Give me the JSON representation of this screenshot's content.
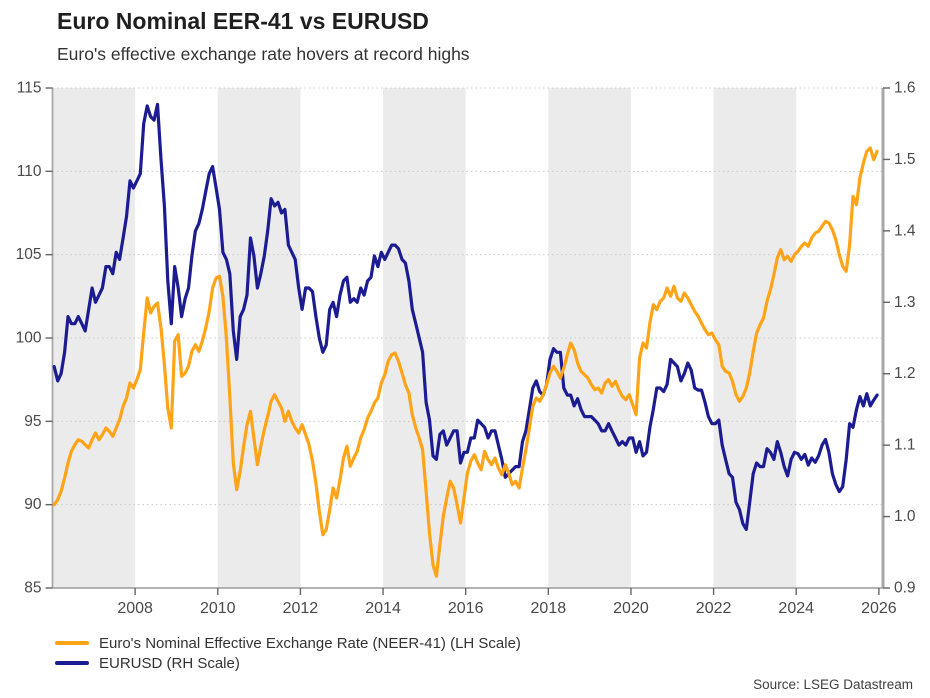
{
  "header": {
    "title": "Euro Nominal EER-41 vs EURUSD",
    "subtitle": "Euro's effective exchange rate hovers at record highs"
  },
  "source": "Source: LSEG Datastream",
  "legend": [
    {
      "label": "Euro's Nominal Effective Exchange Rate (NEER-41) (LH Scale)",
      "color": "#FFA317"
    },
    {
      "label": "EURUSD (RH Scale)",
      "color": "#1C1C92"
    }
  ],
  "colors": {
    "neer_orange": "#FFA317",
    "eurusd_navy": "#1C1C92",
    "band_gray": "#EBEBEB",
    "gridline": "#C9C9C9",
    "axis_line": "#A8A8A8",
    "tick_text": "#4A4A4A"
  },
  "chart_data": {
    "type": "line",
    "title": "Euro Nominal EER-41 vs EURUSD",
    "subtitle": "Euro's effective exchange rate hovers at record highs",
    "frequency": "monthly",
    "x_start_year": 2006,
    "x_range": [
      2006,
      2026.1
    ],
    "x_tick_values": [
      2008,
      2010,
      2012,
      2014,
      2016,
      2018,
      2020,
      2022,
      2024,
      2026
    ],
    "x_tick_labels": [
      "2008",
      "2010",
      "2012",
      "2014",
      "2016",
      "2018",
      "2020",
      "2022",
      "2024",
      "2026"
    ],
    "left_axis": {
      "range": [
        85,
        115
      ],
      "tick_values": [
        85,
        90,
        95,
        100,
        105,
        110,
        115
      ],
      "tick_labels": [
        "85",
        "90",
        "95",
        "100",
        "105",
        "110",
        "115"
      ]
    },
    "right_axis": {
      "range": [
        0.9,
        1.6
      ],
      "tick_values": [
        0.9,
        1.0,
        1.1,
        1.2,
        1.3,
        1.4,
        1.5,
        1.6
      ],
      "tick_labels": [
        "0.9",
        "1.0",
        "1.1",
        "1.2",
        "1.3",
        "1.4",
        "1.5",
        "1.6"
      ]
    },
    "shaded_band_start_years": [
      2006,
      2010,
      2014,
      2018,
      2022
    ],
    "shaded_band_width_years": 2,
    "grid": "horizontal-dotted",
    "legend_position": "bottom-left",
    "series": [
      {
        "name": "Euro's Nominal Effective Exchange Rate (NEER-41) (LH Scale)",
        "axis": "left",
        "color": "#FFA317",
        "values": [
          90.0,
          90.3,
          90.8,
          91.6,
          92.5,
          93.2,
          93.6,
          93.9,
          93.8,
          93.6,
          93.4,
          93.9,
          94.3,
          93.9,
          94.2,
          94.6,
          94.4,
          94.1,
          94.6,
          95.1,
          95.9,
          96.4,
          97.3,
          97.0,
          97.5,
          98.1,
          100.3,
          102.4,
          101.5,
          101.9,
          102.1,
          100.6,
          98.4,
          95.8,
          94.6,
          99.8,
          100.2,
          97.7,
          97.9,
          98.3,
          99.2,
          99.6,
          99.2,
          99.8,
          100.6,
          101.6,
          103.0,
          103.6,
          103.7,
          102.5,
          100.0,
          96.5,
          92.5,
          90.9,
          92.0,
          93.5,
          94.8,
          95.6,
          94.0,
          92.4,
          93.5,
          94.5,
          95.3,
          96.2,
          96.6,
          96.2,
          95.8,
          95.0,
          95.6,
          95.0,
          94.6,
          94.3,
          94.8,
          94.2,
          93.6,
          92.6,
          91.3,
          89.6,
          88.2,
          88.5,
          89.7,
          91.0,
          90.4,
          91.5,
          92.8,
          93.5,
          92.3,
          92.8,
          93.2,
          94.0,
          94.5,
          95.2,
          95.6,
          96.1,
          96.4,
          97.3,
          97.8,
          98.6,
          99.0,
          99.1,
          98.6,
          97.9,
          97.2,
          96.7,
          95.4,
          94.6,
          94.0,
          93.3,
          90.8,
          88.3,
          86.4,
          85.7,
          87.6,
          89.3,
          90.4,
          91.4,
          91.0,
          90.0,
          88.9,
          90.4,
          91.9,
          92.6,
          93.0,
          92.5,
          92.1,
          93.2,
          92.7,
          92.4,
          92.8,
          92.2,
          91.8,
          92.4,
          91.9,
          91.2,
          91.4,
          91.0,
          92.2,
          93.3,
          94.6,
          95.9,
          96.4,
          96.2,
          96.6,
          97.2,
          97.9,
          98.3,
          98.0,
          97.6,
          98.2,
          99.0,
          99.7,
          99.3,
          98.5,
          98.0,
          97.8,
          97.6,
          97.2,
          96.9,
          97.0,
          96.7,
          97.3,
          97.5,
          97.1,
          97.4,
          96.9,
          96.5,
          96.3,
          96.6,
          96.0,
          95.4,
          98.8,
          99.7,
          99.4,
          100.9,
          102.0,
          101.7,
          102.2,
          102.4,
          103.0,
          102.5,
          103.1,
          102.4,
          102.2,
          102.7,
          102.4,
          102.0,
          101.6,
          101.3,
          100.9,
          100.5,
          100.2,
          100.3,
          99.9,
          99.6,
          98.3,
          98.0,
          97.9,
          97.4,
          96.6,
          96.2,
          96.5,
          97.0,
          97.9,
          99.2,
          100.3,
          100.8,
          101.2,
          102.2,
          102.9,
          103.8,
          104.8,
          105.3,
          104.7,
          104.9,
          104.6,
          105.0,
          105.2,
          105.5,
          105.7,
          105.5,
          106.0,
          106.3,
          106.4,
          106.7,
          107.0,
          106.9,
          106.5,
          105.9,
          105.0,
          104.3,
          104.0,
          105.6,
          108.5,
          108.0,
          109.6,
          110.5,
          111.2,
          111.4,
          110.7,
          111.2
        ]
      },
      {
        "name": "EURUSD (RH Scale)",
        "axis": "right",
        "color": "#1C1C92",
        "values": [
          1.21,
          1.19,
          1.2,
          1.23,
          1.28,
          1.27,
          1.27,
          1.28,
          1.27,
          1.26,
          1.29,
          1.32,
          1.3,
          1.31,
          1.32,
          1.35,
          1.35,
          1.34,
          1.37,
          1.36,
          1.39,
          1.42,
          1.47,
          1.46,
          1.47,
          1.48,
          1.55,
          1.575,
          1.56,
          1.555,
          1.577,
          1.5,
          1.435,
          1.33,
          1.27,
          1.35,
          1.32,
          1.28,
          1.305,
          1.32,
          1.365,
          1.4,
          1.41,
          1.43,
          1.455,
          1.48,
          1.49,
          1.46,
          1.43,
          1.37,
          1.36,
          1.34,
          1.26,
          1.22,
          1.28,
          1.29,
          1.31,
          1.39,
          1.365,
          1.32,
          1.34,
          1.365,
          1.4,
          1.445,
          1.435,
          1.44,
          1.425,
          1.43,
          1.38,
          1.37,
          1.36,
          1.32,
          1.29,
          1.32,
          1.32,
          1.315,
          1.28,
          1.25,
          1.23,
          1.24,
          1.29,
          1.3,
          1.28,
          1.31,
          1.33,
          1.335,
          1.3,
          1.305,
          1.3,
          1.32,
          1.31,
          1.33,
          1.335,
          1.365,
          1.35,
          1.37,
          1.36,
          1.37,
          1.38,
          1.38,
          1.375,
          1.36,
          1.355,
          1.33,
          1.29,
          1.27,
          1.25,
          1.23,
          1.16,
          1.135,
          1.085,
          1.08,
          1.115,
          1.12,
          1.1,
          1.11,
          1.12,
          1.12,
          1.075,
          1.09,
          1.09,
          1.11,
          1.11,
          1.135,
          1.13,
          1.125,
          1.11,
          1.12,
          1.12,
          1.1,
          1.08,
          1.055,
          1.06,
          1.065,
          1.07,
          1.07,
          1.105,
          1.12,
          1.15,
          1.18,
          1.19,
          1.175,
          1.17,
          1.185,
          1.22,
          1.235,
          1.23,
          1.23,
          1.18,
          1.17,
          1.17,
          1.155,
          1.165,
          1.15,
          1.14,
          1.14,
          1.14,
          1.135,
          1.13,
          1.12,
          1.12,
          1.13,
          1.12,
          1.11,
          1.1,
          1.105,
          1.1,
          1.11,
          1.11,
          1.09,
          1.105,
          1.085,
          1.09,
          1.125,
          1.15,
          1.18,
          1.18,
          1.175,
          1.185,
          1.22,
          1.215,
          1.21,
          1.19,
          1.2,
          1.215,
          1.205,
          1.18,
          1.177,
          1.177,
          1.16,
          1.14,
          1.13,
          1.13,
          1.135,
          1.1,
          1.08,
          1.06,
          1.055,
          1.02,
          1.01,
          0.99,
          0.982,
          1.02,
          1.06,
          1.075,
          1.07,
          1.07,
          1.095,
          1.09,
          1.08,
          1.105,
          1.09,
          1.07,
          1.057,
          1.08,
          1.09,
          1.088,
          1.08,
          1.087,
          1.072,
          1.082,
          1.076,
          1.085,
          1.1,
          1.108,
          1.09,
          1.06,
          1.045,
          1.035,
          1.042,
          1.08,
          1.13,
          1.125,
          1.15,
          1.168,
          1.155,
          1.172,
          1.155,
          1.163,
          1.17
        ]
      }
    ]
  }
}
